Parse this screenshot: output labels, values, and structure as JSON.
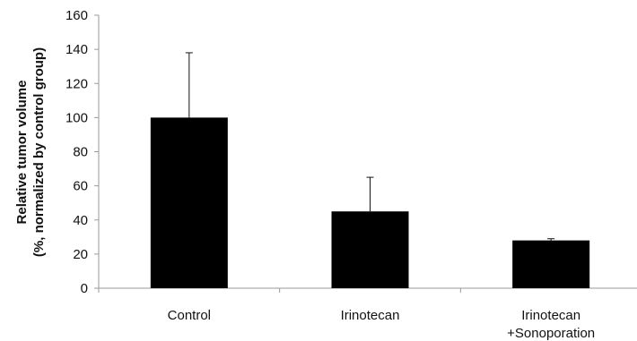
{
  "chart_data": {
    "type": "bar",
    "categories": [
      "Control",
      "Irinotecan",
      "Irinotecan\n+Sonoporation"
    ],
    "values": [
      100,
      45,
      28
    ],
    "error_upper": [
      38,
      20,
      1
    ],
    "title": "",
    "xlabel": "",
    "ylabel": [
      "Relative tumor volume",
      "(%, normalized by control group)"
    ],
    "ylim": [
      0,
      160
    ],
    "yticks": [
      0,
      20,
      40,
      60,
      80,
      100,
      120,
      140,
      160
    ],
    "grid": false,
    "legend": "none",
    "bar_color": "#000000",
    "axis_color": "#9a9a9a"
  }
}
